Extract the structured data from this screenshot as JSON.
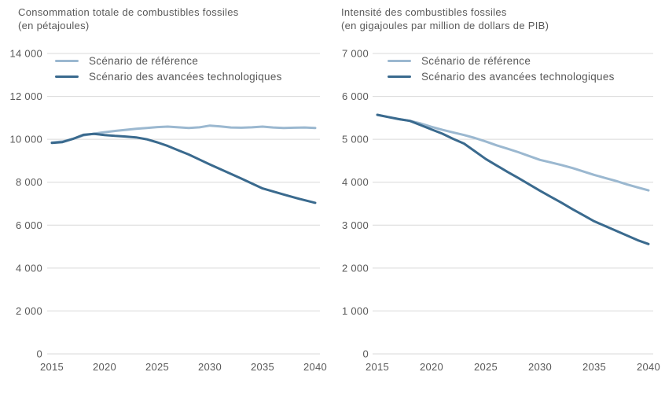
{
  "colors": {
    "reference": "#9bb8d0",
    "technology": "#3a6a8e",
    "grid": "#d9d9d9",
    "text": "#595959",
    "background": "#ffffff"
  },
  "chart_data": [
    {
      "id": "fossil-fuel-consumption",
      "type": "line",
      "title_line1": "Consommation totale de combustibles fossiles",
      "title_line2": "(en pétajoules)",
      "xlabel": "",
      "ylabel": "pétajoules",
      "ylim": [
        0,
        14000
      ],
      "grid": true,
      "legend_position": "top-left-inside",
      "x": [
        2015,
        2016,
        2017,
        2018,
        2019,
        2020,
        2021,
        2022,
        2023,
        2024,
        2025,
        2026,
        2027,
        2028,
        2029,
        2030,
        2031,
        2032,
        2033,
        2034,
        2035,
        2036,
        2037,
        2038,
        2039,
        2040
      ],
      "x_tick_years": [
        2015,
        2020,
        2025,
        2030,
        2035,
        2040
      ],
      "x_tick_labels": [
        "2015",
        "2020",
        "2025",
        "2030",
        "2035",
        "2040"
      ],
      "y_tick_values": [
        14000,
        12000,
        10000,
        8000,
        6000,
        4000,
        2000,
        0
      ],
      "y_tick_labels": [
        "14 000",
        "12 000",
        "10 000",
        "8 000",
        "6 000",
        "4 000",
        "2 000",
        "0"
      ],
      "series": [
        {
          "name": "Scénario de référence",
          "color_key": "reference",
          "values": [
            9850,
            9900,
            10020,
            10180,
            10260,
            10330,
            10390,
            10440,
            10490,
            10530,
            10570,
            10590,
            10560,
            10530,
            10560,
            10640,
            10600,
            10550,
            10540,
            10560,
            10590,
            10550,
            10530,
            10540,
            10550,
            10530
          ]
        },
        {
          "name": "Scénario des avancées technologiques",
          "color_key": "technology",
          "values": [
            9830,
            9870,
            10020,
            10210,
            10250,
            10200,
            10160,
            10130,
            10090,
            10000,
            9860,
            9690,
            9490,
            9290,
            9060,
            8830,
            8610,
            8390,
            8170,
            7940,
            7710,
            7570,
            7430,
            7290,
            7160,
            7040
          ]
        }
      ]
    },
    {
      "id": "fossil-fuel-intensity",
      "type": "line",
      "title_line1": "Intensité des combustibles fossiles",
      "title_line2": "(en gigajoules par million de dollars de PIB)",
      "xlabel": "",
      "ylabel": "gigajoules par million de dollars de PIB",
      "ylim": [
        0,
        7000
      ],
      "grid": true,
      "legend_position": "top-left-inside",
      "x": [
        2015,
        2016,
        2017,
        2018,
        2019,
        2020,
        2021,
        2022,
        2023,
        2024,
        2025,
        2026,
        2027,
        2028,
        2029,
        2030,
        2031,
        2032,
        2033,
        2034,
        2035,
        2036,
        2037,
        2038,
        2039,
        2040
      ],
      "x_tick_years": [
        2015,
        2020,
        2025,
        2030,
        2035,
        2040
      ],
      "x_tick_labels": [
        "2015",
        "2020",
        "2025",
        "2030",
        "2035",
        "2040"
      ],
      "y_tick_values": [
        7000,
        6000,
        5000,
        4000,
        3000,
        2000,
        1000,
        0
      ],
      "y_tick_labels": [
        "7 000",
        "6 000",
        "5 000",
        "4 000",
        "3 000",
        "2 000",
        "1 000",
        "0"
      ],
      "series": [
        {
          "name": "Scénario de référence",
          "color_key": "reference",
          "values": [
            5570,
            5520,
            5470,
            5430,
            5370,
            5290,
            5220,
            5160,
            5100,
            5030,
            4950,
            4860,
            4780,
            4700,
            4610,
            4520,
            4460,
            4400,
            4330,
            4250,
            4170,
            4100,
            4030,
            3950,
            3880,
            3810
          ]
        },
        {
          "name": "Scénario des avancées technologiques",
          "color_key": "technology",
          "values": [
            5570,
            5520,
            5470,
            5430,
            5330,
            5230,
            5130,
            5010,
            4900,
            4720,
            4540,
            4390,
            4240,
            4100,
            3950,
            3800,
            3660,
            3520,
            3370,
            3230,
            3090,
            2980,
            2870,
            2760,
            2650,
            2560
          ]
        }
      ]
    }
  ]
}
